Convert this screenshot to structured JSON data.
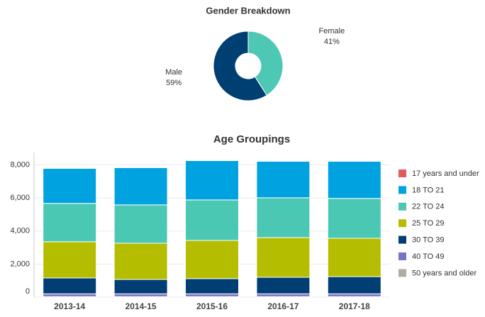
{
  "chart_data": [
    {
      "type": "pie",
      "title": "Gender Breakdown",
      "donut": true,
      "categories": [
        "Male",
        "Female"
      ],
      "values": [
        59,
        41
      ],
      "value_labels": [
        "59%",
        "41%"
      ],
      "colors": [
        "#003f72",
        "#4dc8b4"
      ]
    },
    {
      "type": "stacked_bar",
      "title": "Age Groupings",
      "categories": [
        "2013-14",
        "2014-15",
        "2015-16",
        "2016-17",
        "2017-18"
      ],
      "series": [
        {
          "name": "17 years and under",
          "color": "#e05a5f",
          "values": [
            20,
            20,
            20,
            20,
            20
          ]
        },
        {
          "name": "18 TO 21",
          "color": "#00a3e0",
          "values": [
            2120,
            2250,
            2380,
            2210,
            2250
          ]
        },
        {
          "name": "22 TO 24",
          "color": "#4bc8b4",
          "values": [
            2320,
            2320,
            2450,
            2410,
            2410
          ]
        },
        {
          "name": "25 TO 29",
          "color": "#b5bd00",
          "values": [
            2190,
            2190,
            2310,
            2400,
            2320
          ]
        },
        {
          "name": "30 TO 39",
          "color": "#003e74",
          "values": [
            960,
            870,
            920,
            1000,
            1040
          ]
        },
        {
          "name": "40 TO 49",
          "color": "#7a72c3",
          "values": [
            170,
            170,
            170,
            170,
            170
          ]
        },
        {
          "name": "50 years and older",
          "color": "#b0aca4",
          "values": [
            30,
            30,
            30,
            30,
            30
          ]
        }
      ],
      "ylim": [
        0,
        8750
      ],
      "yticks": [
        0,
        {
          "value": 2000,
          "label": "2,000"
        },
        {
          "value": 4000,
          "label": "4,000"
        },
        {
          "value": 6000,
          "label": "6,000"
        },
        {
          "value": 8000,
          "label": "8,000"
        }
      ],
      "grid": true,
      "legend": "right"
    }
  ]
}
